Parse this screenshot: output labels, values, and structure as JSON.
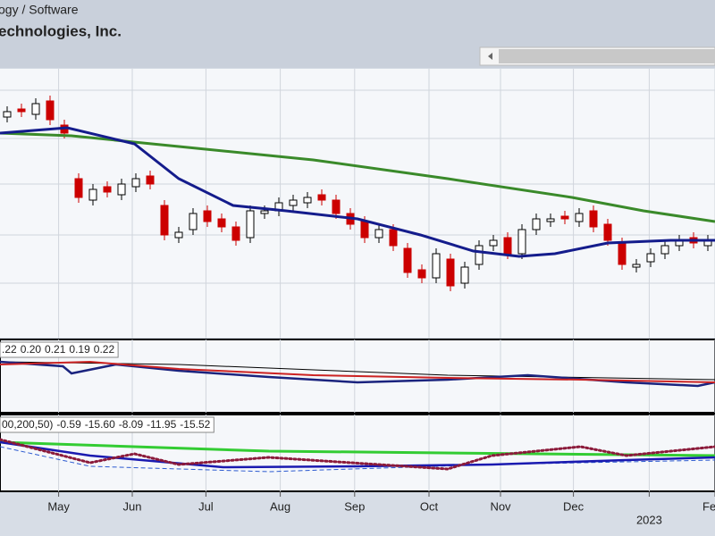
{
  "header": {
    "sector": "ogy / Software",
    "company": "echnologies, Inc."
  },
  "chart_data": [
    {
      "type": "candlestick",
      "xlim": [
        0,
        50
      ],
      "ylim": [
        0,
        100
      ],
      "yticks": [
        21,
        39,
        58,
        75,
        93
      ],
      "grid": true,
      "xticks": [
        {
          "value": 4.1,
          "label": "May"
        },
        {
          "value": 9.25,
          "label": "Jun"
        },
        {
          "value": 14.4,
          "label": "Jul"
        },
        {
          "value": 19.6,
          "label": "Aug"
        },
        {
          "value": 24.8,
          "label": "Sep"
        },
        {
          "value": 30,
          "label": "Oct"
        },
        {
          "value": 35,
          "label": "Nov"
        },
        {
          "value": 40.1,
          "label": "Dec"
        },
        {
          "value": 45.4,
          "label": "2023"
        },
        {
          "value": 50,
          "label": "Fe"
        }
      ],
      "up_color": "#000000",
      "down_color": "#cc0000",
      "open": [
        83,
        86,
        84,
        89,
        80,
        60,
        52,
        57,
        54,
        57,
        61,
        50,
        38,
        41,
        48,
        45,
        42,
        38,
        47,
        48,
        50,
        51,
        54,
        52,
        47,
        44,
        38,
        41,
        34,
        26,
        23,
        30,
        21,
        28,
        35,
        38,
        32,
        41,
        44,
        46,
        44,
        48,
        43,
        36,
        27,
        29,
        32,
        35,
        38,
        35
      ],
      "high": [
        87,
        88,
        90,
        91,
        82,
        62,
        58,
        59,
        60,
        62,
        63,
        52,
        42,
        49,
        50,
        47,
        44,
        50,
        50,
        53,
        54,
        55,
        56,
        54,
        49,
        46,
        43,
        43,
        36,
        28,
        34,
        32,
        29,
        37,
        39,
        40,
        43,
        47,
        47,
        48,
        49,
        50,
        45,
        38,
        30,
        34,
        37,
        39,
        40,
        39
      ],
      "low": [
        81,
        83,
        82,
        80,
        75,
        51,
        50,
        53,
        52,
        55,
        56,
        37,
        36,
        39,
        42,
        40,
        35,
        36,
        45,
        46,
        48,
        49,
        50,
        45,
        41,
        36,
        36,
        33,
        23,
        21,
        21,
        18,
        19,
        26,
        33,
        30,
        30,
        39,
        42,
        43,
        42,
        40,
        35,
        26,
        25,
        27,
        30,
        33,
        34,
        33
      ],
      "close": [
        85,
        85,
        88,
        82,
        77,
        53,
        56,
        55,
        58,
        60,
        58,
        39,
        40,
        47,
        44,
        42,
        37,
        48,
        48,
        51,
        52,
        53,
        52,
        47,
        43,
        38,
        41,
        35,
        25,
        23,
        32,
        20,
        27,
        35,
        37,
        32,
        41,
        45,
        45,
        45,
        47,
        42,
        37,
        28,
        28,
        32,
        35,
        37,
        36,
        37
      ],
      "overlays": [
        {
          "color": "#3a8a2a",
          "width": 3,
          "x": [
            0,
            5,
            12.5,
            21.9,
            31.3,
            40,
            45,
            50
          ],
          "values": [
            77,
            76,
            72,
            67,
            60,
            53,
            48,
            44
          ]
        },
        {
          "color": "#141c8c",
          "width": 3,
          "x": [
            0,
            4.7,
            9.4,
            12.5,
            16.3,
            20,
            25,
            29.4,
            33.1,
            36.3,
            38.8,
            42.5,
            46.9,
            50
          ],
          "values": [
            77,
            79,
            73,
            60,
            50,
            48,
            45,
            39,
            33,
            31,
            32,
            36,
            37,
            37
          ]
        }
      ]
    },
    {
      "type": "line",
      "xlim": [
        0,
        50
      ],
      "ylim": [
        0,
        82
      ],
      "legend": [
        {
          "text": ".22",
          "color": "#1a237e"
        },
        {
          "text": "0.20",
          "color": "#1a3fbf"
        },
        {
          "text": "0.21",
          "color": "#cc0000"
        },
        {
          "text": "0.19",
          "color": "#000000"
        },
        {
          "text": "0.22",
          "color": "#000000"
        }
      ],
      "series": [
        {
          "color": "#000000",
          "width": 1,
          "x": [
            0,
            12.5,
            31.3,
            50
          ],
          "values": [
            57,
            54,
            42,
            37
          ]
        },
        {
          "color": "#1a237e",
          "width": 2.5,
          "x": [
            0,
            4.4,
            5,
            8.1,
            12.5,
            18.8,
            25,
            31.3,
            36.9,
            43.8,
            48.8,
            50
          ],
          "values": [
            57,
            52,
            44,
            54,
            47,
            40,
            34,
            37,
            42,
            34,
            30,
            34
          ]
        },
        {
          "color": "#cc2222",
          "width": 2,
          "x": [
            0,
            6.3,
            12.5,
            21.9,
            31.3,
            40.6,
            50
          ],
          "values": [
            54,
            57,
            49,
            42,
            39,
            37,
            34
          ]
        }
      ]
    },
    {
      "type": "line",
      "xlim": [
        0,
        50
      ],
      "ylim": [
        0,
        86
      ],
      "legend": [
        {
          "text": "00,200,50)",
          "color": "#000000"
        },
        {
          "text": "-0.59",
          "color": "#1a3fbf"
        },
        {
          "text": "-15.60",
          "color": "#1a237e"
        },
        {
          "text": "-8.09",
          "color": "#2c5ad0"
        },
        {
          "text": "-11.95",
          "color": "#22aa22"
        },
        {
          "text": "-15.52",
          "color": "#8b1a3a"
        }
      ],
      "series": [
        {
          "color": "#2c5ad0",
          "width": 1,
          "dash": true,
          "x": [
            0,
            6.3,
            18.8,
            34.4,
            50
          ],
          "values": [
            50,
            28,
            22,
            30,
            35
          ]
        },
        {
          "color": "#33cc33",
          "width": 3,
          "x": [
            0,
            18.8,
            50
          ],
          "values": [
            55,
            45,
            40
          ]
        },
        {
          "color": "#1a1ab0",
          "width": 2.5,
          "x": [
            0,
            6.3,
            15.6,
            25,
            34.4,
            43.8,
            50
          ],
          "values": [
            55,
            40,
            27,
            28,
            30,
            35,
            38
          ]
        },
        {
          "color": "#8b1a3a",
          "width": 3,
          "dotted": true,
          "x": [
            0,
            6.3,
            9.4,
            12.5,
            18.8,
            31.3,
            34.4,
            40.6,
            43.8,
            50
          ],
          "values": [
            58,
            32,
            42,
            30,
            38,
            25,
            40,
            50,
            40,
            50
          ]
        }
      ]
    }
  ]
}
